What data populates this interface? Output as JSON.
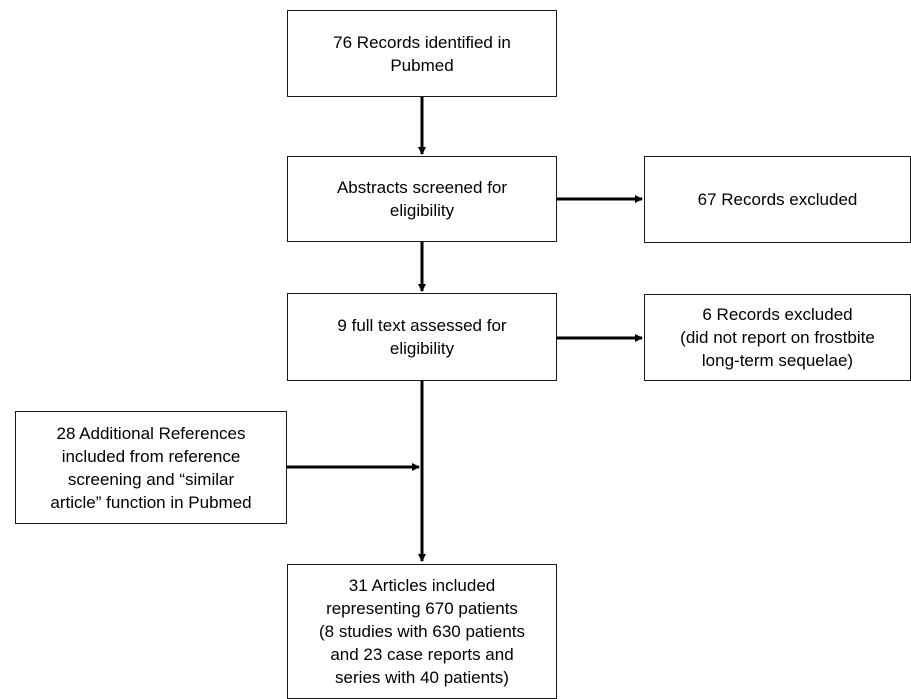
{
  "boxes": {
    "identified": "76 Records identified in\nPubmed",
    "screened": "Abstracts screened for\neligibility",
    "excluded_1": "67 Records excluded",
    "fulltext": "9 full text assessed for\neligibility",
    "excluded_2": "6 Records excluded\n(did not report on frostbite\nlong-term sequelae)",
    "additional": "28 Additional References\nincluded from reference\nscreening and “similar\narticle” function in Pubmed",
    "included": "31 Articles included\nrepresenting 670 patients\n(8 studies with 630 patients\nand 23 case reports and\nseries with 40 patients)"
  },
  "colors": {
    "line": "#000000",
    "border": "#1a1a1a",
    "background": "#ffffff"
  }
}
